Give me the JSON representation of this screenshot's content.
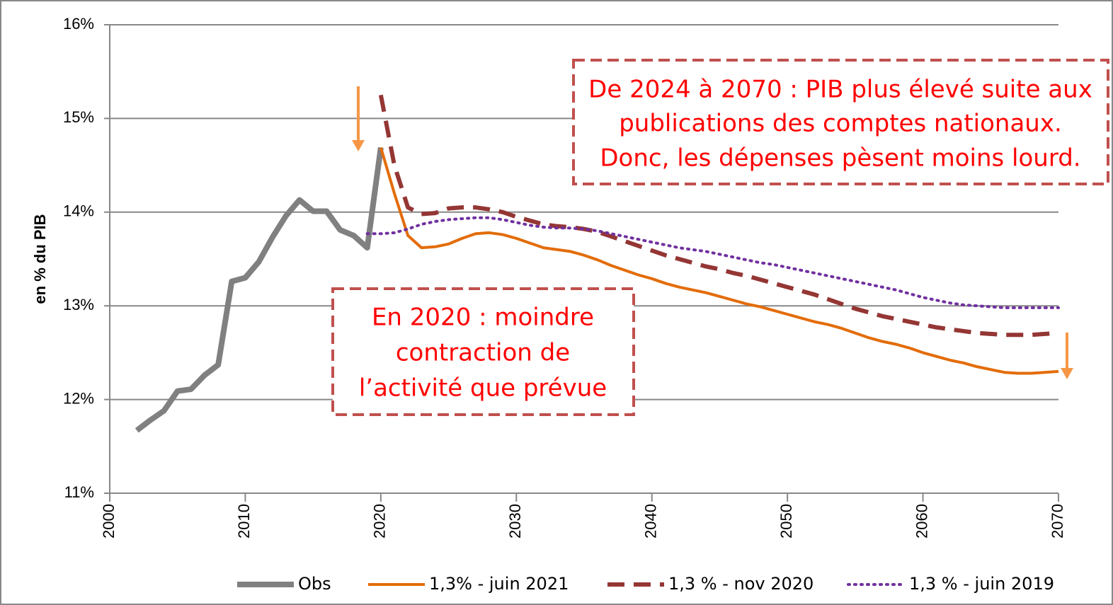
{
  "chart_data": {
    "type": "line",
    "y_label": "en % du PIB",
    "x": [
      2002,
      2003,
      2004,
      2005,
      2006,
      2007,
      2008,
      2009,
      2010,
      2011,
      2012,
      2013,
      2014,
      2015,
      2016,
      2017,
      2018,
      2019,
      2020,
      2021,
      2022,
      2023,
      2024,
      2025,
      2026,
      2027,
      2028,
      2029,
      2030,
      2031,
      2032,
      2033,
      2034,
      2035,
      2036,
      2037,
      2038,
      2039,
      2040,
      2041,
      2042,
      2043,
      2044,
      2045,
      2046,
      2047,
      2048,
      2049,
      2050,
      2051,
      2052,
      2053,
      2054,
      2055,
      2056,
      2057,
      2058,
      2059,
      2060,
      2061,
      2062,
      2063,
      2064,
      2065,
      2066,
      2067,
      2068,
      2069,
      2070
    ],
    "xlim": [
      2000,
      2070
    ],
    "xticks": [
      2000,
      2010,
      2020,
      2030,
      2040,
      2050,
      2060,
      2070
    ],
    "ylim": [
      11,
      16
    ],
    "yticks": [
      {
        "value": 11,
        "label": "11%"
      },
      {
        "value": 12,
        "label": "12%"
      },
      {
        "value": 13,
        "label": "13%"
      },
      {
        "value": 14,
        "label": "14%"
      },
      {
        "value": 15,
        "label": "15%"
      },
      {
        "value": 16,
        "label": "16%"
      }
    ],
    "grid": true,
    "series": [
      {
        "name": "Obs",
        "color": "#808080",
        "style": "solid",
        "values": [
          11.67,
          11.78,
          11.88,
          12.09,
          12.11,
          12.26,
          12.37,
          13.26,
          13.3,
          13.47,
          13.73,
          13.96,
          14.13,
          14.01,
          14.01,
          13.81,
          13.75,
          13.62,
          14.69,
          null,
          null,
          null,
          null,
          null,
          null,
          null,
          null,
          null,
          null,
          null,
          null,
          null,
          null,
          null,
          null,
          null,
          null,
          null,
          null,
          null,
          null,
          null,
          null,
          null,
          null,
          null,
          null,
          null,
          null,
          null,
          null,
          null,
          null,
          null,
          null,
          null,
          null,
          null,
          null,
          null,
          null,
          null,
          null,
          null,
          null,
          null,
          null,
          null,
          null
        ]
      },
      {
        "name": "1,3% - juin 2021",
        "color": "#e36c09",
        "style": "solid",
        "values": [
          null,
          null,
          null,
          null,
          null,
          null,
          null,
          null,
          null,
          null,
          null,
          null,
          null,
          null,
          null,
          null,
          null,
          null,
          14.69,
          14.2,
          13.75,
          13.62,
          13.63,
          13.66,
          13.72,
          13.77,
          13.78,
          13.76,
          13.72,
          13.67,
          13.62,
          13.6,
          13.58,
          13.54,
          13.49,
          13.43,
          13.38,
          13.33,
          13.29,
          13.24,
          13.2,
          13.17,
          13.14,
          13.1,
          13.06,
          13.02,
          12.99,
          12.95,
          12.91,
          12.87,
          12.83,
          12.8,
          12.76,
          12.71,
          12.66,
          12.62,
          12.59,
          12.55,
          12.5,
          12.46,
          12.42,
          12.39,
          12.35,
          12.32,
          12.29,
          12.28,
          12.28,
          12.29,
          12.3
        ]
      },
      {
        "name": "1,3 % - nov 2020",
        "color": "#943634",
        "style": "dashed",
        "values": [
          null,
          null,
          null,
          null,
          null,
          null,
          null,
          null,
          null,
          null,
          null,
          null,
          null,
          null,
          null,
          null,
          null,
          null,
          15.25,
          14.5,
          14.05,
          13.98,
          13.99,
          14.04,
          14.05,
          14.05,
          14.03,
          14.0,
          13.95,
          13.91,
          13.87,
          13.85,
          13.84,
          13.82,
          13.79,
          13.74,
          13.69,
          13.64,
          13.59,
          13.54,
          13.5,
          13.46,
          13.42,
          13.39,
          13.35,
          13.32,
          13.28,
          13.24,
          13.2,
          13.16,
          13.12,
          13.07,
          13.02,
          12.97,
          12.93,
          12.89,
          12.86,
          12.83,
          12.8,
          12.77,
          12.75,
          12.73,
          12.71,
          12.7,
          12.69,
          12.69,
          12.69,
          12.7,
          12.71
        ]
      },
      {
        "name": "1,3 % - juin 2019",
        "color": "#7030a0",
        "style": "dotted",
        "values": [
          null,
          null,
          null,
          null,
          null,
          null,
          null,
          null,
          null,
          null,
          null,
          null,
          null,
          null,
          null,
          null,
          null,
          13.77,
          13.77,
          13.78,
          13.82,
          13.87,
          13.9,
          13.92,
          13.93,
          13.94,
          13.94,
          13.92,
          13.89,
          13.86,
          13.84,
          13.83,
          13.83,
          13.82,
          13.8,
          13.77,
          13.74,
          13.71,
          13.68,
          13.65,
          13.62,
          13.6,
          13.58,
          13.55,
          13.52,
          13.49,
          13.46,
          13.44,
          13.41,
          13.38,
          13.35,
          13.32,
          13.29,
          13.26,
          13.23,
          13.2,
          13.17,
          13.13,
          13.09,
          13.06,
          13.03,
          13.01,
          13.0,
          12.99,
          12.98,
          12.98,
          12.98,
          12.98,
          12.98
        ]
      }
    ],
    "annotations": [
      {
        "lines": [
          "De 2024 à 2070 : PIB plus élevé suite aux",
          "publications des comptes nationaux.",
          "Donc, les dépenses pèsent moins lourd."
        ]
      },
      {
        "lines": [
          "En 2020 : moindre",
          "contraction de",
          "l’activité que prévue"
        ]
      }
    ]
  }
}
